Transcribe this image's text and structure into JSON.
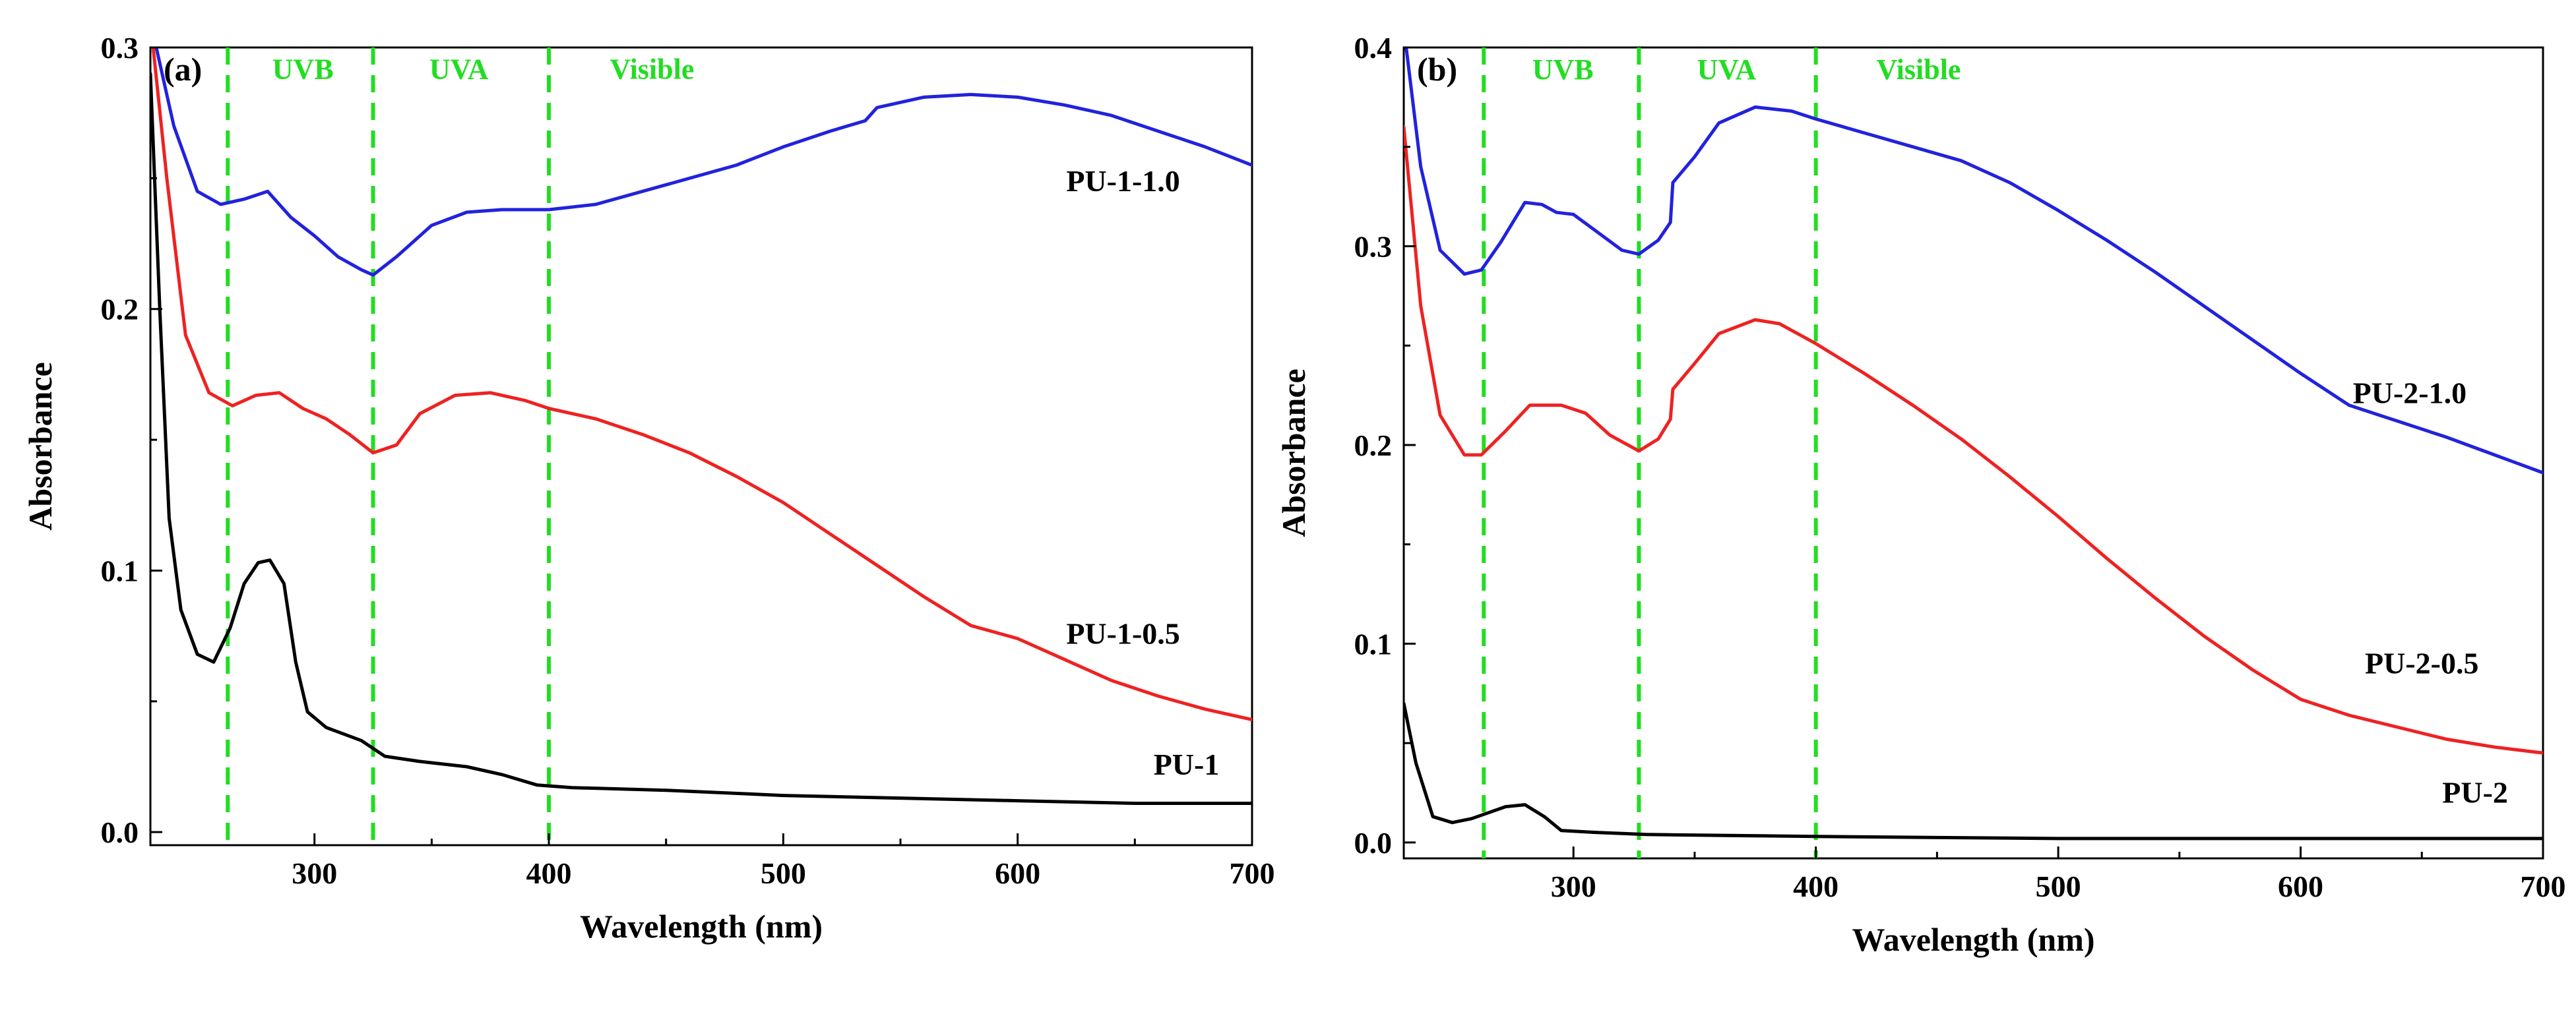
{
  "chart_data": [
    {
      "type": "line",
      "panel_label": "(a)",
      "xlabel": "Wavelength (nm)",
      "ylabel": "Absorbance",
      "xlim": [
        230,
        700
      ],
      "ylim": [
        -0.005,
        0.3
      ],
      "xticks": [
        300,
        400,
        500,
        600,
        700
      ],
      "yticks": [
        0.0,
        0.1,
        0.2,
        0.3
      ],
      "ytick_labels": [
        "0.0",
        "0.1",
        "0.2",
        "0.3"
      ],
      "grid": false,
      "region_color": "#22dd22",
      "region_lines": [
        263,
        325,
        400
      ],
      "region_labels": [
        {
          "text": "UVB",
          "x": 282,
          "y": 0.288
        },
        {
          "text": "UVA",
          "x": 349,
          "y": 0.288
        },
        {
          "text": "Visible",
          "x": 426,
          "y": 0.288
        }
      ],
      "series": [
        {
          "name": "PU-1-1.0",
          "color": "#2222dd",
          "label_at": [
            645,
            0.245
          ],
          "points": [
            [
              230,
              0.31
            ],
            [
              240,
              0.27
            ],
            [
              250,
              0.245
            ],
            [
              260,
              0.24
            ],
            [
              270,
              0.242
            ],
            [
              280,
              0.245
            ],
            [
              290,
              0.235
            ],
            [
              300,
              0.228
            ],
            [
              310,
              0.22
            ],
            [
              320,
              0.215
            ],
            [
              325,
              0.213
            ],
            [
              335,
              0.22
            ],
            [
              350,
              0.232
            ],
            [
              365,
              0.237
            ],
            [
              380,
              0.238
            ],
            [
              400,
              0.238
            ],
            [
              420,
              0.24
            ],
            [
              440,
              0.245
            ],
            [
              460,
              0.25
            ],
            [
              480,
              0.255
            ],
            [
              500,
              0.262
            ],
            [
              520,
              0.268
            ],
            [
              535,
              0.272
            ],
            [
              540,
              0.277
            ],
            [
              560,
              0.281
            ],
            [
              580,
              0.282
            ],
            [
              600,
              0.281
            ],
            [
              620,
              0.278
            ],
            [
              640,
              0.274
            ],
            [
              660,
              0.268
            ],
            [
              680,
              0.262
            ],
            [
              700,
              0.255
            ]
          ]
        },
        {
          "name": "PU-1-0.5",
          "color": "#ee2222",
          "label_at": [
            645,
            0.072
          ],
          "points": [
            [
              230,
              0.31
            ],
            [
              237,
              0.25
            ],
            [
              245,
              0.19
            ],
            [
              255,
              0.168
            ],
            [
              265,
              0.163
            ],
            [
              275,
              0.167
            ],
            [
              285,
              0.168
            ],
            [
              295,
              0.162
            ],
            [
              305,
              0.158
            ],
            [
              315,
              0.152
            ],
            [
              325,
              0.145
            ],
            [
              335,
              0.148
            ],
            [
              345,
              0.16
            ],
            [
              360,
              0.167
            ],
            [
              375,
              0.168
            ],
            [
              390,
              0.165
            ],
            [
              400,
              0.162
            ],
            [
              420,
              0.158
            ],
            [
              440,
              0.152
            ],
            [
              460,
              0.145
            ],
            [
              480,
              0.136
            ],
            [
              500,
              0.126
            ],
            [
              520,
              0.114
            ],
            [
              540,
              0.102
            ],
            [
              560,
              0.09
            ],
            [
              580,
              0.079
            ],
            [
              600,
              0.074
            ],
            [
              620,
              0.066
            ],
            [
              640,
              0.058
            ],
            [
              660,
              0.052
            ],
            [
              680,
              0.047
            ],
            [
              700,
              0.043
            ]
          ]
        },
        {
          "name": "PU-1",
          "color": "#000000",
          "label_at": [
            672,
            0.022
          ],
          "points": [
            [
              230,
              0.29
            ],
            [
              234,
              0.2
            ],
            [
              238,
              0.12
            ],
            [
              243,
              0.085
            ],
            [
              250,
              0.068
            ],
            [
              257,
              0.065
            ],
            [
              264,
              0.078
            ],
            [
              270,
              0.095
            ],
            [
              276,
              0.103
            ],
            [
              281,
              0.104
            ],
            [
              287,
              0.095
            ],
            [
              292,
              0.065
            ],
            [
              297,
              0.046
            ],
            [
              305,
              0.04
            ],
            [
              320,
              0.035
            ],
            [
              330,
              0.029
            ],
            [
              345,
              0.027
            ],
            [
              365,
              0.025
            ],
            [
              380,
              0.022
            ],
            [
              395,
              0.018
            ],
            [
              410,
              0.017
            ],
            [
              450,
              0.016
            ],
            [
              500,
              0.014
            ],
            [
              550,
              0.013
            ],
            [
              600,
              0.012
            ],
            [
              650,
              0.011
            ],
            [
              700,
              0.011
            ]
          ]
        }
      ]
    },
    {
      "type": "line",
      "panel_label": "(b)",
      "xlabel": "Wavelength (nm)",
      "ylabel": "Absorbance",
      "xlim": [
        230,
        700
      ],
      "ylim": [
        -0.008,
        0.4
      ],
      "xticks": [
        300,
        400,
        500,
        600,
        700
      ],
      "yticks": [
        0.0,
        0.1,
        0.2,
        0.3,
        0.4
      ],
      "ytick_labels": [
        "0.0",
        "0.1",
        "0.2",
        "0.3",
        "0.4"
      ],
      "grid": false,
      "region_color": "#22dd22",
      "region_lines": [
        263,
        327,
        400
      ],
      "region_labels": [
        {
          "text": "UVB",
          "x": 283,
          "y": 0.384
        },
        {
          "text": "UVA",
          "x": 351,
          "y": 0.384
        },
        {
          "text": "Visible",
          "x": 425,
          "y": 0.384
        }
      ],
      "series": [
        {
          "name": "PU-2-1.0",
          "color": "#2222dd",
          "label_at": [
            645,
            0.221
          ],
          "points": [
            [
              230,
              0.41
            ],
            [
              237,
              0.34
            ],
            [
              245,
              0.298
            ],
            [
              255,
              0.286
            ],
            [
              262,
              0.288
            ],
            [
              270,
              0.302
            ],
            [
              280,
              0.322
            ],
            [
              287,
              0.321
            ],
            [
              293,
              0.317
            ],
            [
              300,
              0.316
            ],
            [
              310,
              0.307
            ],
            [
              320,
              0.298
            ],
            [
              327,
              0.296
            ],
            [
              335,
              0.303
            ],
            [
              340,
              0.312
            ],
            [
              341,
              0.332
            ],
            [
              350,
              0.345
            ],
            [
              360,
              0.362
            ],
            [
              375,
              0.37
            ],
            [
              390,
              0.368
            ],
            [
              400,
              0.364
            ],
            [
              420,
              0.357
            ],
            [
              440,
              0.35
            ],
            [
              460,
              0.343
            ],
            [
              480,
              0.332
            ],
            [
              500,
              0.318
            ],
            [
              520,
              0.303
            ],
            [
              540,
              0.287
            ],
            [
              560,
              0.27
            ],
            [
              580,
              0.253
            ],
            [
              600,
              0.236
            ],
            [
              620,
              0.22
            ],
            [
              640,
              0.212
            ],
            [
              660,
              0.204
            ],
            [
              680,
              0.195
            ],
            [
              700,
              0.186
            ]
          ]
        },
        {
          "name": "PU-2-0.5",
          "color": "#ee2222",
          "label_at": [
            650,
            0.085
          ],
          "points": [
            [
              230,
              0.36
            ],
            [
              237,
              0.27
            ],
            [
              245,
              0.215
            ],
            [
              255,
              0.195
            ],
            [
              262,
              0.195
            ],
            [
              272,
              0.207
            ],
            [
              282,
              0.22
            ],
            [
              295,
              0.22
            ],
            [
              305,
              0.216
            ],
            [
              315,
              0.205
            ],
            [
              327,
              0.197
            ],
            [
              335,
              0.203
            ],
            [
              340,
              0.213
            ],
            [
              341,
              0.228
            ],
            [
              350,
              0.241
            ],
            [
              360,
              0.256
            ],
            [
              375,
              0.263
            ],
            [
              385,
              0.261
            ],
            [
              400,
              0.251
            ],
            [
              420,
              0.236
            ],
            [
              440,
              0.22
            ],
            [
              460,
              0.203
            ],
            [
              480,
              0.184
            ],
            [
              500,
              0.164
            ],
            [
              520,
              0.143
            ],
            [
              540,
              0.123
            ],
            [
              560,
              0.104
            ],
            [
              580,
              0.087
            ],
            [
              600,
              0.072
            ],
            [
              620,
              0.064
            ],
            [
              640,
              0.058
            ],
            [
              660,
              0.052
            ],
            [
              680,
              0.048
            ],
            [
              700,
              0.045
            ]
          ]
        },
        {
          "name": "PU-2",
          "color": "#000000",
          "label_at": [
            672,
            0.02
          ],
          "points": [
            [
              230,
              0.07
            ],
            [
              235,
              0.04
            ],
            [
              242,
              0.013
            ],
            [
              250,
              0.01
            ],
            [
              258,
              0.012
            ],
            [
              265,
              0.015
            ],
            [
              272,
              0.018
            ],
            [
              280,
              0.019
            ],
            [
              288,
              0.013
            ],
            [
              295,
              0.006
            ],
            [
              310,
              0.005
            ],
            [
              330,
              0.004
            ],
            [
              400,
              0.003
            ],
            [
              500,
              0.002
            ],
            [
              600,
              0.002
            ],
            [
              700,
              0.002
            ]
          ]
        }
      ]
    }
  ]
}
